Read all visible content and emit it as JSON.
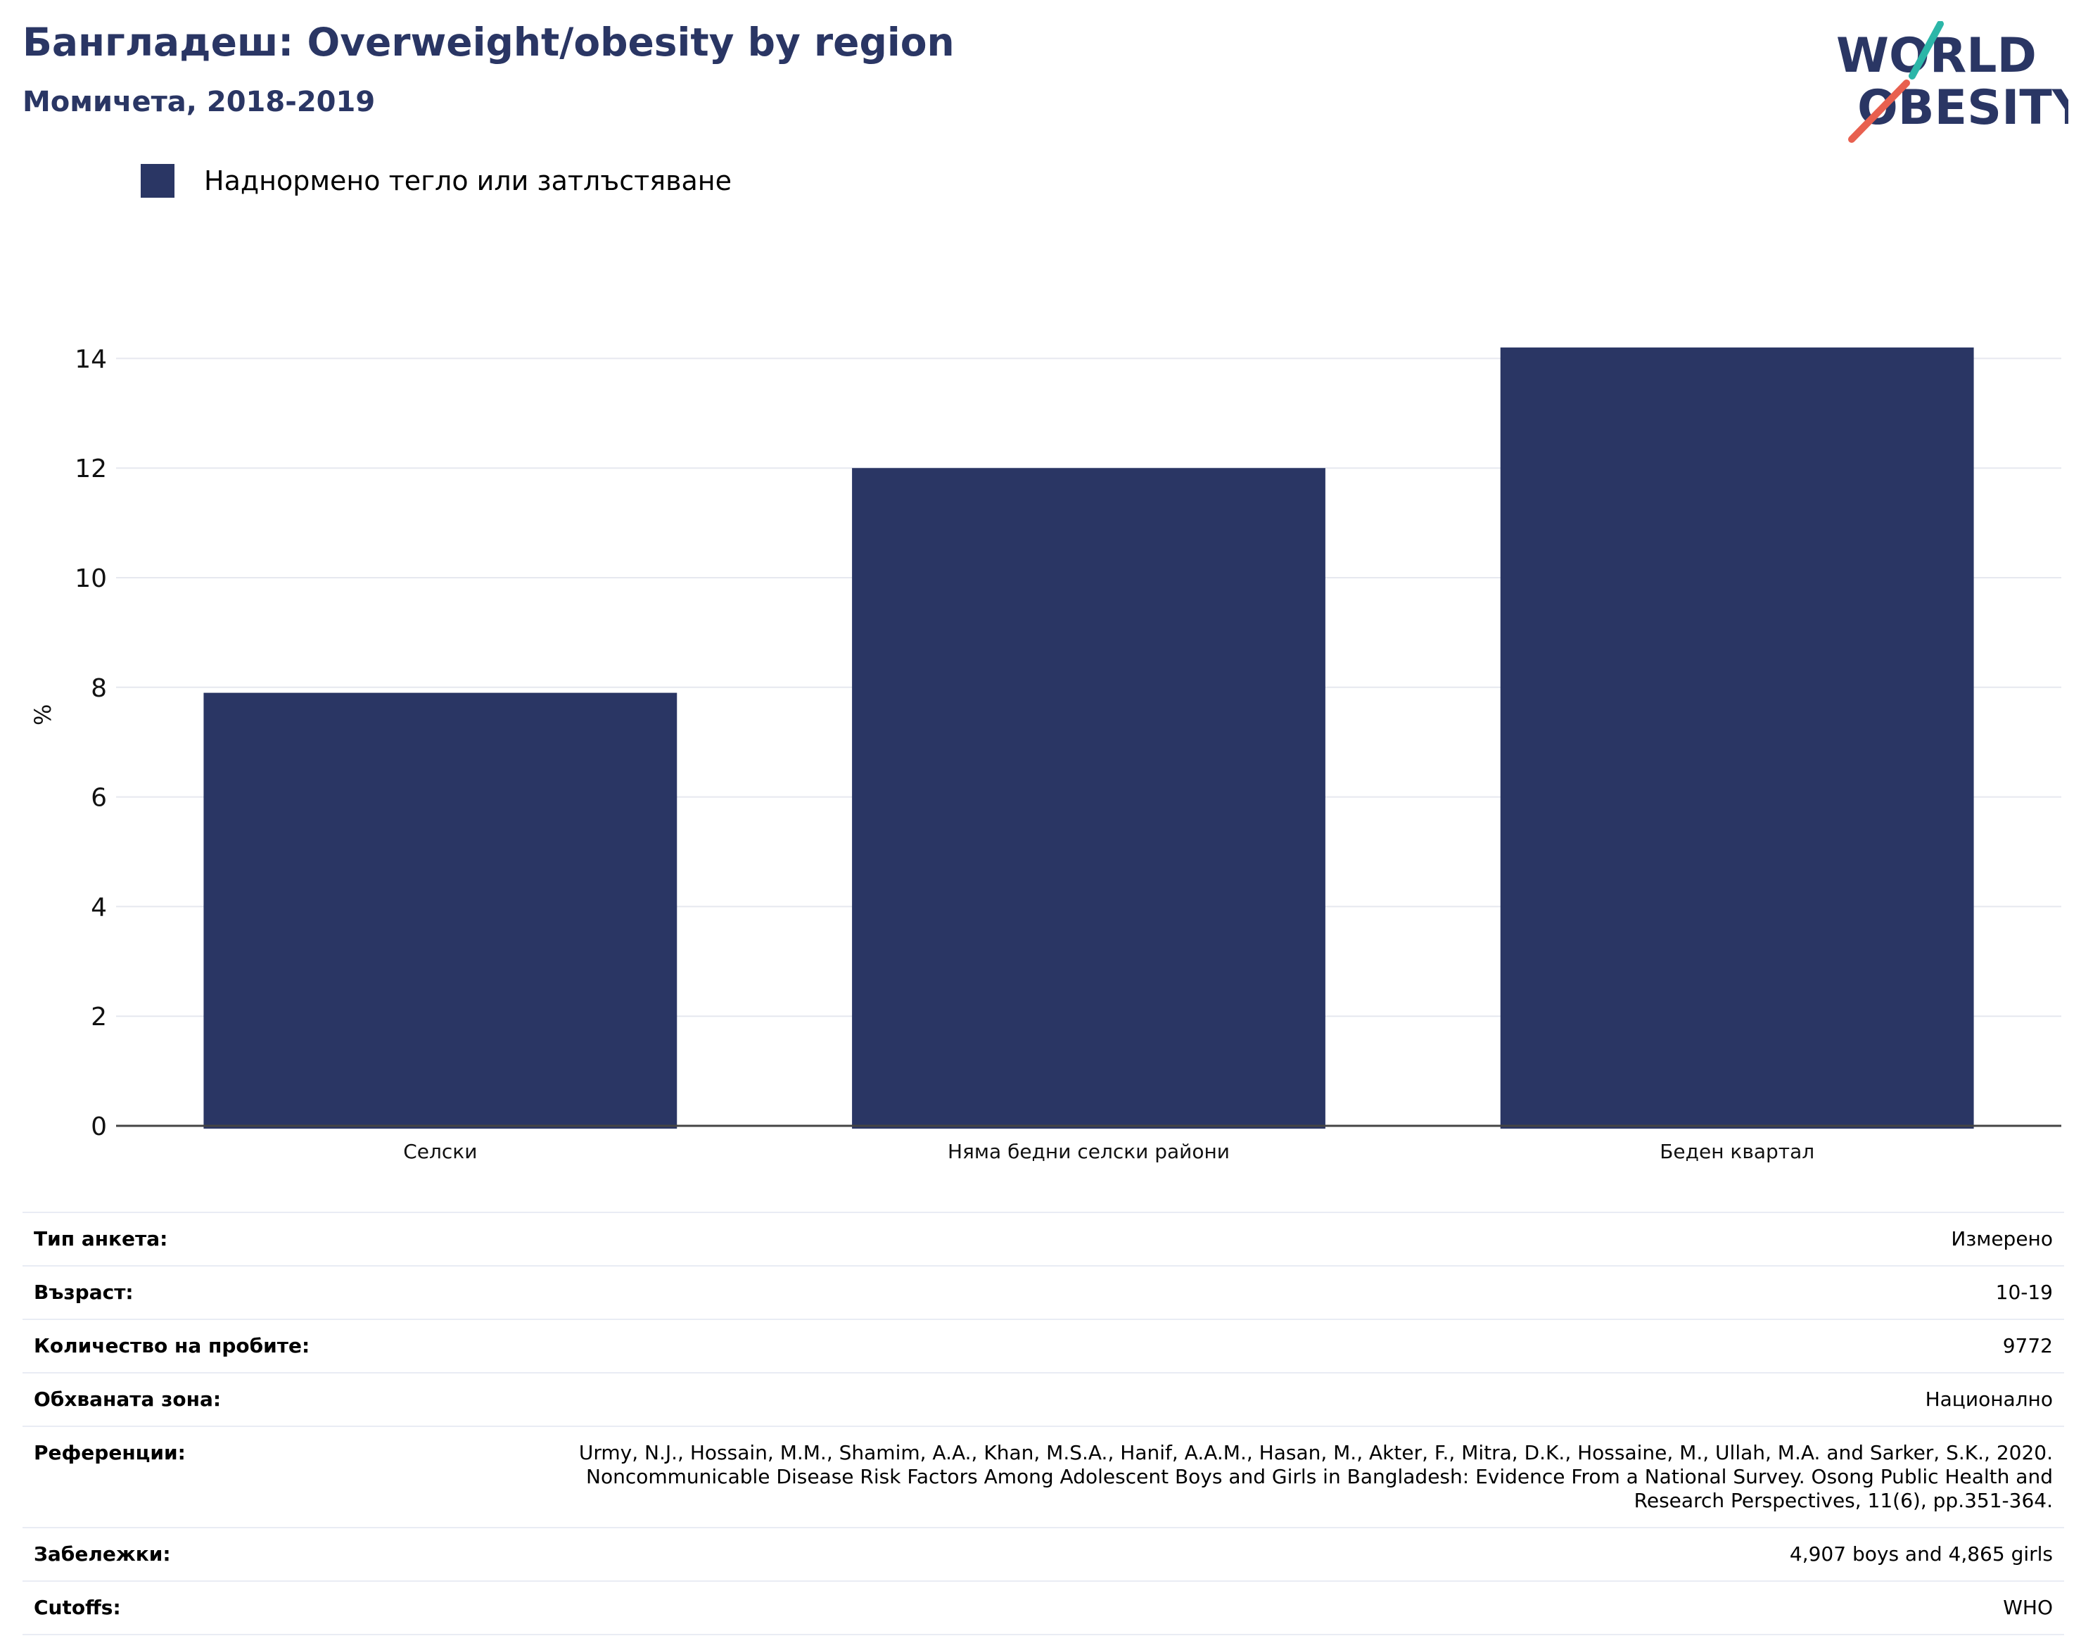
{
  "header": {
    "title": "Бангладеш: Overweight/obesity by region",
    "subtitle": "Момичета, 2018-2019"
  },
  "logo": {
    "line1": "WORLD",
    "line2": "OBESITY",
    "text_color": "#2a3664",
    "slash_colors": [
      "#2cb6a8",
      "#e8604f"
    ]
  },
  "legend": {
    "items": [
      {
        "label": "Наднормено тегло или затлъстяване",
        "color": "#2a3664"
      }
    ]
  },
  "chart_data": {
    "type": "bar",
    "categories": [
      "Селски",
      "Няма бедни селски райони",
      "Беден квартал"
    ],
    "series": [
      {
        "name": "Наднормено тегло или затлъстяване",
        "values": [
          7.9,
          12.0,
          14.2
        ],
        "color": "#2a3664"
      }
    ],
    "ylabel": "%",
    "ylim": [
      0,
      15
    ],
    "yticks": [
      0,
      2,
      4,
      6,
      8,
      10,
      12,
      14
    ],
    "grid": true,
    "legend_position": "top-left"
  },
  "info": {
    "rows": [
      {
        "key": "Тип анкета:",
        "value": "Измерено"
      },
      {
        "key": "Възраст:",
        "value": "10-19"
      },
      {
        "key": "Количество на пробите:",
        "value": "9772"
      },
      {
        "key": "Обхваната зона:",
        "value": "Национално"
      },
      {
        "key": "Референции:",
        "value": "Urmy, N.J., Hossain, M.M., Shamim, A.A., Khan, M.S.A., Hanif, A.A.M., Hasan, M., Akter, F., Mitra, D.K., Hossaine, M., Ullah, M.A. and Sarker, S.K., 2020. Noncommunicable Disease Risk Factors Among Adolescent Boys and Girls in Bangladesh: Evidence From a National Survey. Osong Public Health and Research Perspectives, 11(6), pp.351-364."
      },
      {
        "key": "Забележки:",
        "value": "4,907 boys and 4,865 girls"
      },
      {
        "key": "Cutoffs:",
        "value": "WHO"
      }
    ]
  }
}
